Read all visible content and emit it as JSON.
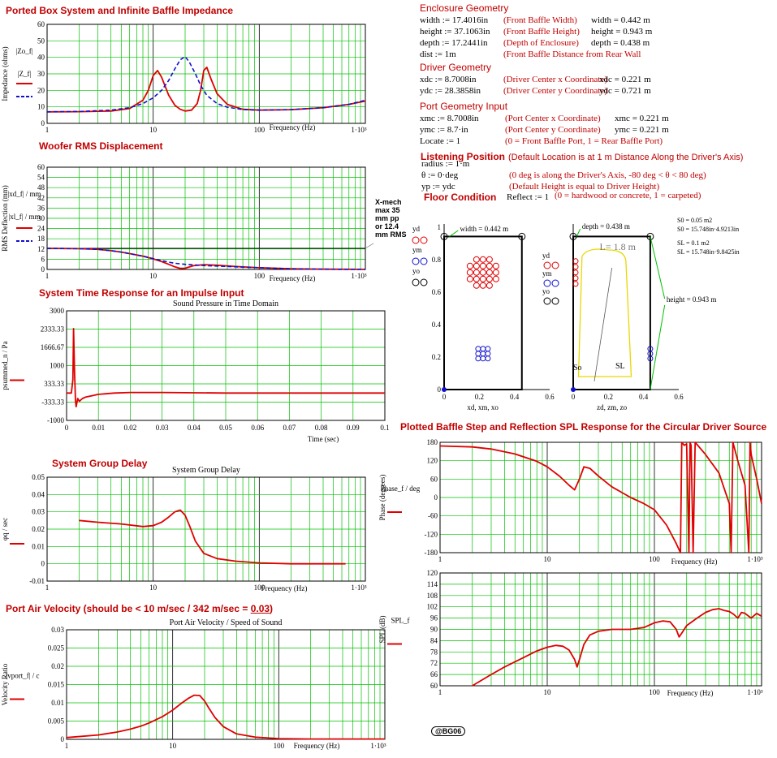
{
  "titles": {
    "impedance": "Ported Box System and Infinite Baffle Impedance",
    "rms": "Woofer RMS Displacement",
    "time": "System Time Response for an Impulse Input",
    "group": "System Group Delay",
    "port": "Port Air Velocity (should be < 10 m/sec / 342 m/sec = ",
    "port_value": "0.03",
    "port_tail": ")",
    "baffle": "Plotted Baffle Step and Reflection SPL Response for the Circular Driver Source",
    "enclosure": "Enclosure Geometry",
    "driver": "Driver Geometry",
    "portgeom": "Port Geometry Input",
    "listening": "Listening Position",
    "listening_note": "(Default Location is at 1 m Distance Along the Driver's Axis)",
    "floor": "Floor Condition"
  },
  "enclosure": [
    {
      "lhs": "width := 17.4016in",
      "note": "(Front Baffle Width)",
      "rhs": "width = 0.442 m"
    },
    {
      "lhs": "height := 37.1063in",
      "note": "(Front Baffle Height)",
      "rhs": "height = 0.943 m"
    },
    {
      "lhs": "depth := 17.2441in",
      "note": "(Depth of Enclosure)",
      "rhs": "depth = 0.438 m"
    },
    {
      "lhs": "dist := 1m",
      "note": "(Front Baffle Distance from Rear Wall",
      "rhs": ""
    }
  ],
  "driver": [
    {
      "lhs": "xdc := 8.7008in",
      "note": "(Driver Center x Coordinate)",
      "rhs": "xdc = 0.221 m"
    },
    {
      "lhs": "ydc := 28.3858in",
      "note": "(Driver Center y Coordinate)",
      "rhs": "ydc = 0.721 m"
    }
  ],
  "portgeom": [
    {
      "lhs": "xmc := 8.7008in",
      "note": "(Port Center x Coordinate)",
      "rhs": "xmc = 0.221 m"
    },
    {
      "lhs": "ymc := 8.7·in",
      "note": "(Port Center y Coordinate)",
      "rhs": "ymc = 0.221 m"
    },
    {
      "lhs": "Locate := 1",
      "note": "(0 = Front Baffle Port, 1 = Rear Baffle Port)",
      "rhs": ""
    }
  ],
  "listening": [
    {
      "lhs": "radius := 1·m",
      "note": ""
    },
    {
      "lhs": "θ := 0·deg",
      "note": "(0 deg is along the Driver's Axis, -80 deg < θ < 80 deg)"
    },
    {
      "lhs": "yp := ydc",
      "note": "(Default Height is equal to Driver Height)"
    }
  ],
  "floor": {
    "lhs": "Reflect := 1",
    "note": "(0 = hardwood or concrete, 1 = carpeted)"
  },
  "enclosure_drawing": {
    "front": {
      "width_label": "width = 0.442 m",
      "legend": [
        "yd",
        "ym",
        "yo"
      ],
      "xlabel": "xd, xm, xo",
      "yticks": [
        "1",
        "0.8",
        "0.6",
        "0.4",
        "0.2",
        "0"
      ],
      "xticks": [
        "0",
        "0.2",
        "0.4",
        "0.6"
      ]
    },
    "side": {
      "depth_label": "depth = 0.438 m",
      "height_label": "height = 0.943 m",
      "port_length": "L= 1.8 m",
      "legend": [
        "yd",
        "ym",
        "yo"
      ],
      "xlabel": "zd, zm, zo",
      "xticks": [
        "0",
        "0.2",
        "0.4",
        "0.6"
      ],
      "so": "So",
      "sl": "SL"
    },
    "areas": [
      "S0 = 0.05 m2",
      "S0 = 15.748in·4.9213in",
      "SL = 0.1 m2",
      "SL = 15.748in·9.8425in"
    ]
  },
  "xmech_note": [
    "X-mech",
    "max 35",
    "mm pp",
    "or 12.4",
    "mm RMS"
  ],
  "stamp": "@BG06",
  "colors": {
    "red": "#e00000",
    "blue": "#1010d0",
    "grid": "#00c000",
    "title": "#c00000"
  },
  "chart_data": [
    {
      "id": "impedance",
      "type": "line",
      "xscale": "log",
      "xlim": [
        1,
        1000
      ],
      "ylim": [
        0,
        60
      ],
      "yticks": [
        0,
        10,
        20,
        30,
        40,
        50,
        60
      ],
      "xticklabels": [
        "1",
        "10",
        "100",
        "1·10³"
      ],
      "xlabel": "Frequency (Hz)",
      "ylabel": "Impedance (ohms)",
      "legend": [
        "|Zo_f|",
        "|Z_f|"
      ],
      "series": [
        {
          "name": "|Zo_f|",
          "color": "red",
          "dash": false,
          "x": [
            1,
            2,
            4,
            6,
            8,
            9,
            10,
            11,
            12,
            14,
            16,
            18,
            20,
            23,
            26,
            28,
            30,
            32,
            35,
            40,
            50,
            70,
            100,
            200,
            400,
            700,
            1000
          ],
          "y": [
            7,
            7.1,
            7.5,
            9,
            14,
            20,
            29,
            32,
            28,
            17,
            11,
            8.5,
            7.5,
            8,
            12,
            20,
            32,
            34,
            27,
            18,
            11.5,
            8.5,
            8,
            8.3,
            9.5,
            11.5,
            13.5
          ]
        },
        {
          "name": "|Z_f|",
          "color": "blue",
          "dash": true,
          "x": [
            1,
            2,
            4,
            6,
            8,
            10,
            12,
            14,
            16,
            18,
            20,
            22,
            25,
            28,
            32,
            40,
            50,
            70,
            100,
            200,
            400,
            700,
            1000
          ],
          "y": [
            7,
            7.2,
            8,
            9.5,
            12,
            15.5,
            20,
            26,
            33,
            38.5,
            40.5,
            37,
            30,
            23,
            17,
            12,
            9.8,
            8.4,
            8,
            8.3,
            9.5,
            11.5,
            14
          ]
        }
      ]
    },
    {
      "id": "rms",
      "type": "line",
      "xscale": "log",
      "xlim": [
        1,
        1000
      ],
      "ylim": [
        0,
        60
      ],
      "yticks": [
        0,
        6,
        12,
        18,
        24,
        30,
        36,
        42,
        48,
        54,
        60
      ],
      "xticklabels": [
        "1",
        "10",
        "100",
        "1·10³"
      ],
      "xlabel": "Frequency (Hz)",
      "ylabel": "RMS Deflection (mm)",
      "legend": [
        "|xd_f| / mm",
        "|xl_f| / mm"
      ],
      "hline": 12.4,
      "series": [
        {
          "name": "|xd_f| / mm",
          "color": "red",
          "dash": false,
          "x": [
            1,
            2,
            3,
            4,
            5,
            6,
            8,
            10,
            12,
            14,
            16,
            18,
            20,
            24,
            30,
            40,
            60,
            100,
            200,
            400,
            1000
          ],
          "y": [
            12.4,
            12.2,
            11.8,
            11,
            10.2,
            9.3,
            7.8,
            6.2,
            4.6,
            3,
            1.5,
            0.6,
            0.7,
            2.2,
            2.8,
            2.5,
            1.7,
            1,
            0.4,
            0.15,
            0.05
          ]
        },
        {
          "name": "|xl_f| / mm",
          "color": "blue",
          "dash": true,
          "x": [
            1,
            2,
            3,
            4,
            5,
            6,
            8,
            10,
            12,
            14,
            16,
            20,
            25,
            30,
            40,
            60,
            100,
            200,
            400,
            1000
          ],
          "y": [
            12.4,
            12.2,
            11.8,
            11,
            10.2,
            9.3,
            7.8,
            6.4,
            5.2,
            4.3,
            3.6,
            3,
            2.6,
            2.3,
            2,
            1.5,
            1,
            0.4,
            0.15,
            0.05
          ]
        }
      ]
    },
    {
      "id": "time",
      "type": "line",
      "xscale": "linear",
      "xlim": [
        0,
        0.1
      ],
      "ylim": [
        -1000,
        3000
      ],
      "yticks": [
        -1000,
        -333.33,
        333.33,
        1000,
        1666.67,
        2333.33,
        3000
      ],
      "yticklabels": [
        "-1000",
        "-333.33",
        "333.33",
        "1000",
        "1666.67",
        "2333.33",
        "3000"
      ],
      "xticks": [
        0,
        0.01,
        0.02,
        0.03,
        0.04,
        0.05,
        0.06,
        0.07,
        0.08,
        0.09,
        0.1
      ],
      "xticklabels": [
        "0",
        "0.01",
        "0.02",
        "0.03",
        "0.04",
        "0.05",
        "0.06",
        "0.07",
        "0.08",
        "0.09",
        "0.1"
      ],
      "title": "Sound Pressure in Time Domain",
      "xlabel": "Time (sec)",
      "ylabel": "psummed_n / Pa",
      "series": [
        {
          "name": "psummed_n / Pa",
          "color": "red",
          "dash": false,
          "x": [
            0,
            0.0015,
            0.002,
            0.0022,
            0.0025,
            0.0028,
            0.003,
            0.0035,
            0.004,
            0.005,
            0.006,
            0.008,
            0.01,
            0.015,
            0.02,
            0.03,
            0.05,
            0.07,
            0.1
          ],
          "y": [
            0,
            0,
            500,
            2350,
            800,
            -300,
            -500,
            -200,
            -300,
            -200,
            -150,
            -100,
            -50,
            0,
            20,
            20,
            0,
            0,
            0
          ]
        }
      ]
    },
    {
      "id": "group",
      "type": "line",
      "xscale": "log",
      "xlim": [
        1,
        1000
      ],
      "ylim": [
        -0.01,
        0.05
      ],
      "yticks": [
        -0.01,
        0,
        0.01,
        0.02,
        0.03,
        0.04,
        0.05
      ],
      "xticklabels": [
        "1",
        "10",
        "100",
        "1·10³"
      ],
      "title": "System Group Delay",
      "xlabel": "Frequency (Hz)",
      "ylabel": "φq / sec",
      "series": [
        {
          "name": "φq / sec",
          "color": "red",
          "dash": false,
          "x": [
            2,
            3,
            5,
            8,
            10,
            12,
            14,
            16,
            18,
            20,
            22,
            25,
            30,
            40,
            60,
            100,
            200,
            400,
            650
          ],
          "y": [
            0.025,
            0.024,
            0.023,
            0.0215,
            0.022,
            0.024,
            0.027,
            0.03,
            0.031,
            0.028,
            0.022,
            0.013,
            0.006,
            0.003,
            0.0015,
            0.0005,
            0,
            0,
            0
          ]
        }
      ]
    },
    {
      "id": "port",
      "type": "line",
      "xscale": "log",
      "xlim": [
        1,
        1000
      ],
      "ylim": [
        0,
        0.03
      ],
      "yticks": [
        0,
        0.005,
        0.01,
        0.015,
        0.02,
        0.025,
        0.03
      ],
      "xticklabels": [
        "1",
        "10",
        "100",
        "1·10³"
      ],
      "title": "Port Air Velocity / Speed of Sound",
      "xlabel": "Frequency (Hz)",
      "ylabel": "Velocity Ratio",
      "legend": [
        "|vport_f| / c"
      ],
      "series": [
        {
          "name": "|vport_f| / c",
          "color": "red",
          "dash": false,
          "x": [
            1,
            2,
            3,
            4,
            5,
            6,
            8,
            10,
            12,
            14,
            16,
            18,
            20,
            22,
            25,
            30,
            40,
            60,
            100,
            200,
            1000
          ],
          "y": [
            0.0005,
            0.0012,
            0.002,
            0.0028,
            0.0036,
            0.0045,
            0.0062,
            0.008,
            0.0098,
            0.0112,
            0.0121,
            0.012,
            0.0105,
            0.0085,
            0.006,
            0.0035,
            0.0015,
            0.0006,
            0.0002,
            0.0001,
            0.0001
          ]
        }
      ]
    },
    {
      "id": "phase",
      "type": "line",
      "xscale": "log",
      "xlim": [
        1,
        1000
      ],
      "ylim": [
        -180,
        180
      ],
      "yticks": [
        -180,
        -120,
        -60,
        0,
        60,
        120,
        180
      ],
      "xticklabels": [
        "1",
        "10",
        "100",
        "1·10³"
      ],
      "xlabel": "Frequency (Hz)",
      "ylabel": "Phase (degrees)",
      "legend": [
        "Phase_f / deg"
      ],
      "series": [
        {
          "name": "Phase_f / deg",
          "color": "red",
          "dash": false,
          "x": [
            1,
            2,
            3,
            5,
            8,
            10,
            13,
            16,
            18,
            20,
            22,
            25,
            30,
            40,
            60,
            80,
            100,
            130,
            160,
            175,
            180,
            190,
            200,
            210,
            215,
            220,
            230,
            240,
            300,
            400,
            500,
            520,
            540,
            600,
            700,
            760,
            780,
            800,
            900,
            1000
          ],
          "y": [
            168,
            165,
            158,
            142,
            118,
            100,
            70,
            40,
            25,
            60,
            100,
            95,
            70,
            35,
            0,
            -20,
            -40,
            -90,
            -150,
            -180,
            180,
            170,
            175,
            -180,
            180,
            170,
            -180,
            180,
            140,
            80,
            -20,
            -180,
            180,
            120,
            40,
            -180,
            180,
            140,
            60,
            -20
          ]
        }
      ]
    },
    {
      "id": "spl",
      "type": "line",
      "xscale": "log",
      "xlim": [
        1,
        1000
      ],
      "ylim": [
        60,
        120
      ],
      "yticks": [
        60,
        66,
        72,
        78,
        84,
        90,
        96,
        102,
        108,
        114,
        120
      ],
      "xticklabels": [
        "1",
        "10",
        "100",
        "1·10³"
      ],
      "xlabel": "Frequency (Hz)",
      "ylabel": "SPL (dB)",
      "legend": [
        "SPL_f"
      ],
      "series": [
        {
          "name": "SPL_f",
          "color": "red",
          "dash": false,
          "x": [
            2,
            3,
            4,
            6,
            8,
            10,
            12,
            14,
            16,
            18,
            19,
            20,
            22,
            25,
            30,
            40,
            60,
            80,
            100,
            120,
            140,
            160,
            170,
            180,
            200,
            250,
            300,
            350,
            400,
            450,
            500,
            550,
            600,
            650,
            700,
            800,
            900,
            1000
          ],
          "y": [
            60,
            66,
            70,
            75,
            78.5,
            80.5,
            81.5,
            81,
            79,
            74,
            70,
            74,
            82,
            87,
            89,
            90,
            90,
            91,
            93.5,
            94.5,
            94,
            90,
            86,
            88,
            92,
            96,
            99,
            100.5,
            101,
            100,
            99.5,
            98,
            96,
            99,
            98.5,
            96,
            98.5,
            97
          ]
        }
      ]
    }
  ]
}
